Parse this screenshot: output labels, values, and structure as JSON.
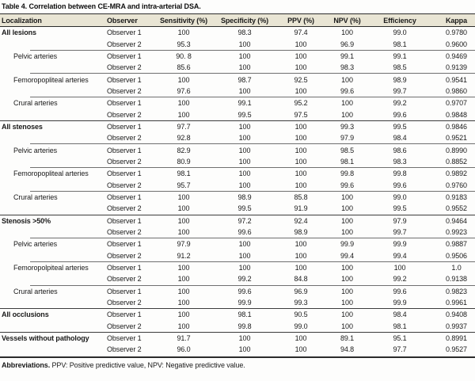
{
  "title": "Table 4. Correlation between CE-MRA and intra-arterial DSA.",
  "columns": [
    "Localization",
    "Observer",
    "Sensitivity (%)",
    "Specificity (%)",
    "PPV (%)",
    "NPV (%)",
    "Efficiency",
    "Kappa"
  ],
  "footnote": {
    "label": "Abbreviations.",
    "text": " PPV: Positive predictive value, NPV: Negative predictive value."
  },
  "colors": {
    "header_bg": "#e9e5d4",
    "rule_dark": "#2b2b2b",
    "rule_group": "#3c3c3c",
    "rule_sub": "#707070"
  },
  "chart_data": {
    "type": "table",
    "title": "Table 4. Correlation between CE-MRA and intra-arterial DSA.",
    "columns": [
      "Localization",
      "Observer",
      "Sensitivity (%)",
      "Specificity (%)",
      "PPV (%)",
      "NPV (%)",
      "Efficiency",
      "Kappa"
    ]
  },
  "groups": [
    {
      "localization": "All lesions",
      "indent": false,
      "rows": [
        {
          "observer": "Observer 1",
          "values": [
            "100",
            "98.3",
            "97.4",
            "100",
            "99.0",
            "0.9780"
          ]
        },
        {
          "observer": "Observer 2",
          "values": [
            "95.3",
            "100",
            "100",
            "96.9",
            "98.1",
            "0.9600"
          ]
        }
      ]
    },
    {
      "localization": "Pelvic arteries",
      "indent": true,
      "rows": [
        {
          "observer": "Observer 1",
          "values": [
            "90. 8",
            "100",
            "100",
            "99.1",
            "99.1",
            "0.9469"
          ]
        },
        {
          "observer": "Observer 2",
          "values": [
            "85.6",
            "100",
            "100",
            "98.3",
            "98.5",
            "0.9139"
          ]
        }
      ]
    },
    {
      "localization": "Femoropopliteal arteries",
      "indent": true,
      "rows": [
        {
          "observer": "Observer 1",
          "values": [
            "100",
            "98.7",
            "92.5",
            "100",
            "98.9",
            "0.9541"
          ]
        },
        {
          "observer": "Observer 2",
          "values": [
            "97.6",
            "100",
            "100",
            "99.6",
            "99.7",
            "0.9860"
          ]
        }
      ]
    },
    {
      "localization": "Crural arteries",
      "indent": true,
      "rows": [
        {
          "observer": "Observer 1",
          "values": [
            "100",
            "99.1",
            "95.2",
            "100",
            "99.2",
            "0.9707"
          ]
        },
        {
          "observer": "Observer 2",
          "values": [
            "100",
            "99.5",
            "97.5",
            "100",
            "99.6",
            "0.9848"
          ]
        }
      ]
    },
    {
      "localization": "All stenoses",
      "indent": false,
      "rows": [
        {
          "observer": "Observer 1",
          "values": [
            "97.7",
            "100",
            "100",
            "99.3",
            "99.5",
            "0.9846"
          ]
        },
        {
          "observer": "Observer 2",
          "values": [
            "92.8",
            "100",
            "100",
            "97.9",
            "98.4",
            "0.9521"
          ]
        }
      ]
    },
    {
      "localization": "Pelvic arteries",
      "indent": true,
      "rows": [
        {
          "observer": "Observer 1",
          "values": [
            "82.9",
            "100",
            "100",
            "98.5",
            "98.6",
            "0.8990"
          ]
        },
        {
          "observer": "Observer 2",
          "values": [
            "80.9",
            "100",
            "100",
            "98.1",
            "98.3",
            "0.8852"
          ]
        }
      ]
    },
    {
      "localization": "Femoropopliteal arteries",
      "indent": true,
      "rows": [
        {
          "observer": "Observer 1",
          "values": [
            "98.1",
            "100",
            "100",
            "99.8",
            "99.8",
            "0.9892"
          ]
        },
        {
          "observer": "Observer 2",
          "values": [
            "95.7",
            "100",
            "100",
            "99.6",
            "99.6",
            "0.9760"
          ]
        }
      ]
    },
    {
      "localization": "Crural arteries",
      "indent": true,
      "rows": [
        {
          "observer": "Observer 1",
          "values": [
            "100",
            "98.9",
            "85.8",
            "100",
            "99.0",
            "0.9183"
          ]
        },
        {
          "observer": "Observer 2",
          "values": [
            "100",
            "99.5",
            "91.9",
            "100",
            "99.5",
            "0.9552"
          ]
        }
      ]
    },
    {
      "localization": "Stenosis >50%",
      "indent": false,
      "rows": [
        {
          "observer": "Observer 1",
          "values": [
            "100",
            "97.2",
            "92.4",
            "100",
            "97.9",
            "0.9464"
          ]
        },
        {
          "observer": "Observer 2",
          "values": [
            "100",
            "99.6",
            "98.9",
            "100",
            "99.7",
            "0.9923"
          ]
        }
      ]
    },
    {
      "localization": "Pelvic arteries",
      "indent": true,
      "rows": [
        {
          "observer": "Observer 1",
          "values": [
            "97.9",
            "100",
            "100",
            "99.9",
            "99.9",
            "0.9887"
          ]
        },
        {
          "observer": "Observer 2",
          "values": [
            "91.2",
            "100",
            "100",
            "99.4",
            "99.4",
            "0.9506"
          ]
        }
      ]
    },
    {
      "localization": "Femoropolpiteal arteries",
      "indent": true,
      "rows": [
        {
          "observer": "Observer 1",
          "values": [
            "100",
            "100",
            "100",
            "100",
            "100",
            "1.0"
          ]
        },
        {
          "observer": "Observer 2",
          "values": [
            "100",
            "99.2",
            "84.8",
            "100",
            "99.2",
            "0.9138"
          ]
        }
      ]
    },
    {
      "localization": "Crural arteries",
      "indent": true,
      "rows": [
        {
          "observer": "Observer 1",
          "values": [
            "100",
            "99.6",
            "96.9",
            "100",
            "99.6",
            "0.9823"
          ]
        },
        {
          "observer": "Observer 2",
          "values": [
            "100",
            "99.9",
            "99.3",
            "100",
            "99.9",
            "0.9961"
          ]
        }
      ]
    },
    {
      "localization": "All occlusions",
      "indent": false,
      "rows": [
        {
          "observer": "Observer 1",
          "values": [
            "100",
            "98.1",
            "90.5",
            "100",
            "98.4",
            "0.9408"
          ]
        },
        {
          "observer": "Observer 2",
          "values": [
            "100",
            "99.8",
            "99.0",
            "100",
            "98.1",
            "0.9937"
          ]
        }
      ]
    },
    {
      "localization": "Vessels without pathology",
      "indent": false,
      "rows": [
        {
          "observer": "Observer 1",
          "values": [
            "91.7",
            "100",
            "100",
            "89.1",
            "95.1",
            "0.8991"
          ]
        },
        {
          "observer": "Observer 2",
          "values": [
            "96.0",
            "100",
            "100",
            "94.8",
            "97.7",
            "0.9527"
          ]
        }
      ]
    }
  ]
}
